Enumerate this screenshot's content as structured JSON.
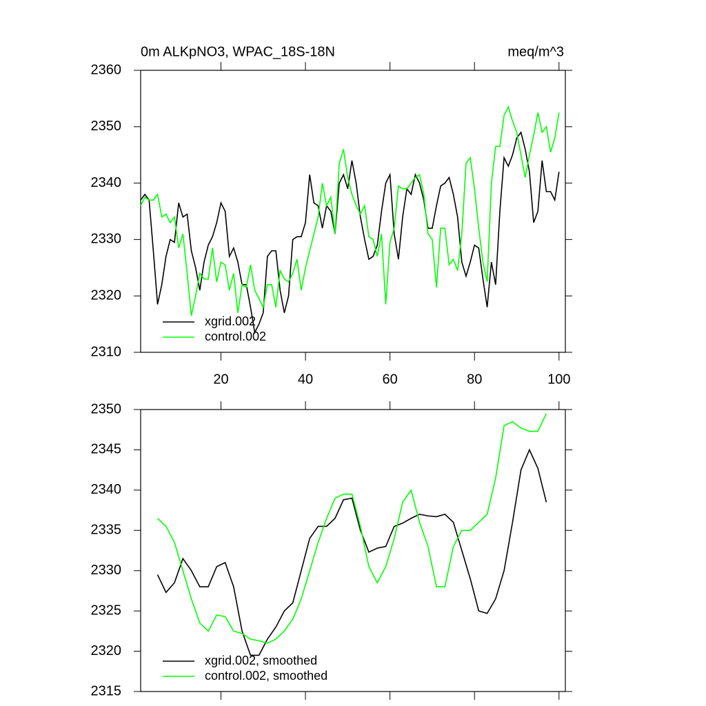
{
  "chart_data": [
    {
      "type": "line",
      "title": "0m ALKpNO3, WPAC_18S-18N",
      "units": "meq/m^3",
      "x": [
        1,
        2,
        3,
        4,
        5,
        6,
        7,
        8,
        9,
        10,
        11,
        12,
        13,
        14,
        15,
        16,
        17,
        18,
        19,
        20,
        21,
        22,
        23,
        24,
        25,
        26,
        27,
        28,
        29,
        30,
        31,
        32,
        33,
        34,
        35,
        36,
        37,
        38,
        39,
        40,
        41,
        42,
        43,
        44,
        45,
        46,
        47,
        48,
        49,
        50,
        51,
        52,
        53,
        54,
        55,
        56,
        57,
        58,
        59,
        60,
        61,
        62,
        63,
        64,
        65,
        66,
        67,
        68,
        69,
        70,
        71,
        72,
        73,
        74,
        75,
        76,
        77,
        78,
        79,
        80,
        81,
        82,
        83,
        84,
        85,
        86,
        87,
        88,
        89,
        90,
        91,
        92,
        93,
        94,
        95,
        96,
        97,
        98,
        99,
        100
      ],
      "series": [
        {
          "name": "xgrid.002",
          "color": "#000000",
          "values": [
            2337,
            2338,
            2337,
            2328,
            2318.5,
            2322,
            2327,
            2330,
            2329.5,
            2336.5,
            2334,
            2334.5,
            2328,
            2325,
            2321,
            2326,
            2329,
            2330.5,
            2333,
            2336.5,
            2335,
            2327,
            2328.5,
            2326,
            2322,
            2322,
            2318,
            2313.5,
            2315,
            2317,
            2327,
            2328,
            2328,
            2321,
            2317,
            2320,
            2330,
            2330.5,
            2330.5,
            2333,
            2341.5,
            2336.5,
            2336,
            2332,
            2336,
            2335,
            2331,
            2340,
            2341.5,
            2339,
            2344,
            2340,
            2334,
            2330,
            2326.5,
            2327,
            2329,
            2335,
            2340,
            2341.5,
            2331,
            2326.5,
            2334,
            2339,
            2338,
            2341.5,
            2340,
            2337,
            2332,
            2332,
            2336,
            2339.5,
            2340,
            2341,
            2338,
            2334,
            2326,
            2323.5,
            2326,
            2329,
            2328.5,
            2323,
            2318,
            2326,
            2322,
            2335,
            2344.5,
            2343,
            2345,
            2348,
            2349,
            2346,
            2342,
            2333,
            2335,
            2344,
            2338.5,
            2338.5,
            2337,
            2342
          ]
        },
        {
          "name": "control.002",
          "color": "#00ff00",
          "values": [
            2336,
            2337.5,
            2337,
            2337,
            2338,
            2334,
            2334.5,
            2333,
            2334,
            2328.5,
            2331,
            2324,
            2316.5,
            2320,
            2324,
            2323,
            2323,
            2328.5,
            2322.5,
            2326,
            2325.5,
            2321,
            2324,
            2317,
            2322,
            2321.5,
            2325.5,
            2321,
            2319.5,
            2318,
            2322,
            2322,
            2318,
            2324.5,
            2323,
            2322.5,
            2324,
            2326.5,
            2321,
            2325,
            2328,
            2331,
            2334,
            2340,
            2336,
            2337.5,
            2331,
            2343.5,
            2346,
            2341,
            2338,
            2336,
            2334.5,
            2336,
            2330.5,
            2330,
            2327,
            2331,
            2318.5,
            2329.5,
            2332,
            2339.5,
            2339,
            2339,
            2340,
            2341,
            2341.5,
            2338,
            2331,
            2330,
            2321.5,
            2332,
            2332,
            2325.5,
            2326.5,
            2324.5,
            2331,
            2343.5,
            2344.5,
            2339,
            2332,
            2326,
            2322.5,
            2340,
            2346.5,
            2346.5,
            2352,
            2353.5,
            2351,
            2349,
            2345,
            2341,
            2345,
            2348.5,
            2352.5,
            2349,
            2350,
            2345.5,
            2348,
            2352.5
          ]
        }
      ],
      "xlim": [
        1,
        101.5
      ],
      "ylim": [
        2310,
        2360
      ],
      "xticks": [
        20,
        40,
        60,
        80,
        100
      ],
      "yticks": [
        2310,
        2320,
        2330,
        2340,
        2350,
        2360
      ],
      "xtick_labels": true,
      "legend": "lower left"
    },
    {
      "type": "line",
      "x": [
        5,
        7,
        9,
        11,
        13,
        15,
        17,
        19,
        21,
        23,
        25,
        27,
        29,
        31,
        33,
        35,
        37,
        39,
        41,
        43,
        45,
        47,
        49,
        51,
        53,
        55,
        57,
        59,
        61,
        63,
        65,
        67,
        69,
        71,
        73,
        75,
        77,
        79,
        81,
        83,
        85,
        87,
        89,
        91,
        93,
        95,
        97
      ],
      "series": [
        {
          "name": "xgrid.002, smoothed",
          "color": "#000000",
          "values": [
            2329.5,
            2327.3,
            2328.5,
            2331.5,
            2330,
            2328,
            2328,
            2330.5,
            2331,
            2328,
            2322.5,
            2319.5,
            2319.5,
            2321.5,
            2323,
            2325,
            2326,
            2330,
            2334,
            2335.5,
            2335.5,
            2336.5,
            2338.8,
            2339,
            2335,
            2332.3,
            2332.8,
            2333,
            2335.5,
            2335.9,
            2336.5,
            2337,
            2336.8,
            2336.7,
            2337,
            2336,
            2332.5,
            2329,
            2325,
            2324.7,
            2326.5,
            2330,
            2336,
            2342.5,
            2345,
            2342.7,
            2338.5
          ]
        },
        {
          "name": "control.002, smoothed",
          "color": "#00ff00",
          "values": [
            2336.5,
            2335.5,
            2333.5,
            2330,
            2326.5,
            2323.5,
            2322.5,
            2324.5,
            2324.3,
            2322.5,
            2322.2,
            2321.5,
            2321.3,
            2321,
            2321.5,
            2322.5,
            2324,
            2326.5,
            2330,
            2333.5,
            2336.5,
            2339,
            2339.5,
            2339.5,
            2335.5,
            2330.5,
            2328.5,
            2330.5,
            2334,
            2338.5,
            2340,
            2336,
            2333,
            2328,
            2328,
            2333,
            2335,
            2335,
            2336,
            2337,
            2341.5,
            2348,
            2348.5,
            2347.7,
            2347.3,
            2347.3,
            2349.5
          ]
        }
      ],
      "xlim": [
        1,
        101.5
      ],
      "ylim": [
        2315,
        2350
      ],
      "xticks": [
        20,
        40,
        60,
        80,
        100
      ],
      "yticks": [
        2315,
        2320,
        2325,
        2330,
        2335,
        2340,
        2345,
        2350
      ],
      "xtick_labels": false,
      "legend": "lower left"
    }
  ]
}
